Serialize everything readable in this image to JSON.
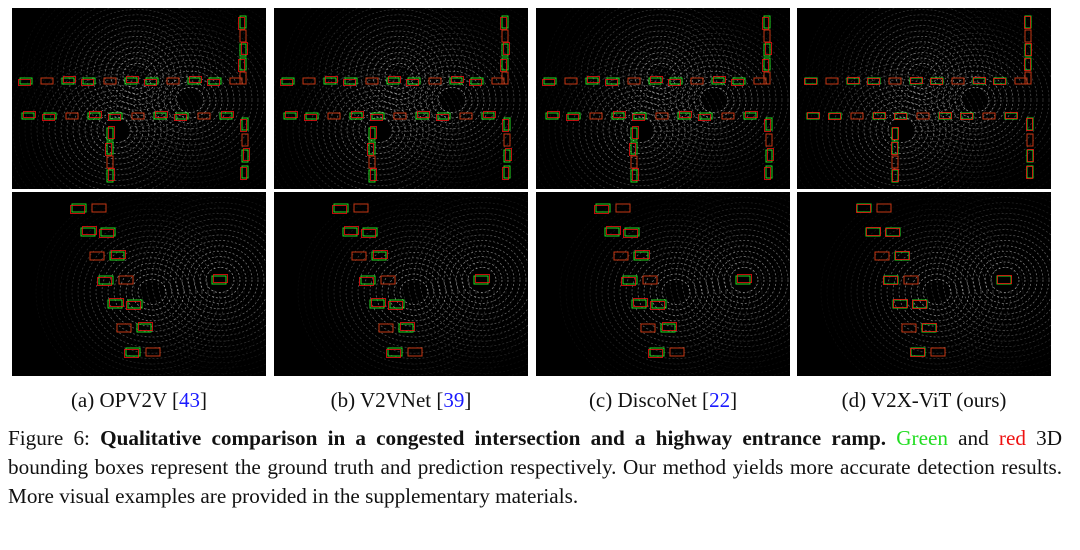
{
  "figure": {
    "panels": [
      {
        "label": "(a) OPV2V [",
        "ref": "43",
        "close": "]"
      },
      {
        "label": "(b) V2VNet [",
        "ref": "39",
        "close": "]"
      },
      {
        "label": "(c) DiscoNet [",
        "ref": "22",
        "close": "]"
      },
      {
        "label": "(d) V2X-ViT (ours)",
        "ref": "",
        "close": ""
      }
    ],
    "rows": [
      "congested intersection",
      "highway entrance ramp"
    ],
    "caption": {
      "prefix": "Figure 6: ",
      "bold": "Qualitative comparison in a congested intersection and a highway entrance ramp.",
      "green_word": "Green",
      "and": " and ",
      "red_word": "red",
      "rest": " 3D bounding boxes represent the ground truth and prediction respectively. Our method yields more accurate detection results.  More visual examples are provided in the supplementary materials."
    },
    "colors": {
      "ground_truth": "#22dd22",
      "prediction": "#ee1111",
      "reference": "#1a1aff"
    }
  }
}
